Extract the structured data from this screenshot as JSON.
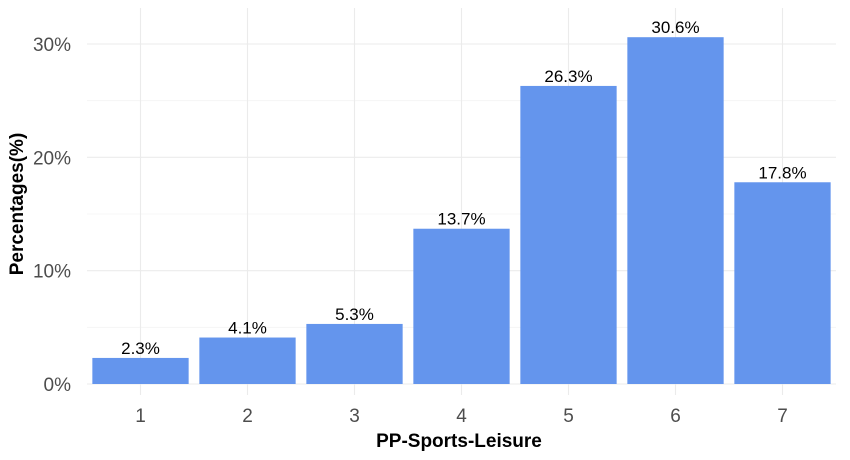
{
  "chart_data": {
    "type": "bar",
    "categories": [
      "1",
      "2",
      "3",
      "4",
      "5",
      "6",
      "7"
    ],
    "values": [
      2.3,
      4.1,
      5.3,
      13.7,
      26.3,
      30.6,
      17.8
    ],
    "value_labels": [
      "2.3%",
      "4.1%",
      "5.3%",
      "13.7%",
      "26.3%",
      "30.6%",
      "17.8%"
    ],
    "xlabel": "PP-Sports-Leisure",
    "ylabel": "Percentages(%)",
    "ylim": [
      0,
      30.6
    ],
    "yticks": [
      0,
      10,
      20,
      30
    ],
    "ytick_labels": [
      "0%",
      "10%",
      "20%",
      "30%"
    ],
    "grid": true,
    "bar_color": "#6495ED"
  }
}
